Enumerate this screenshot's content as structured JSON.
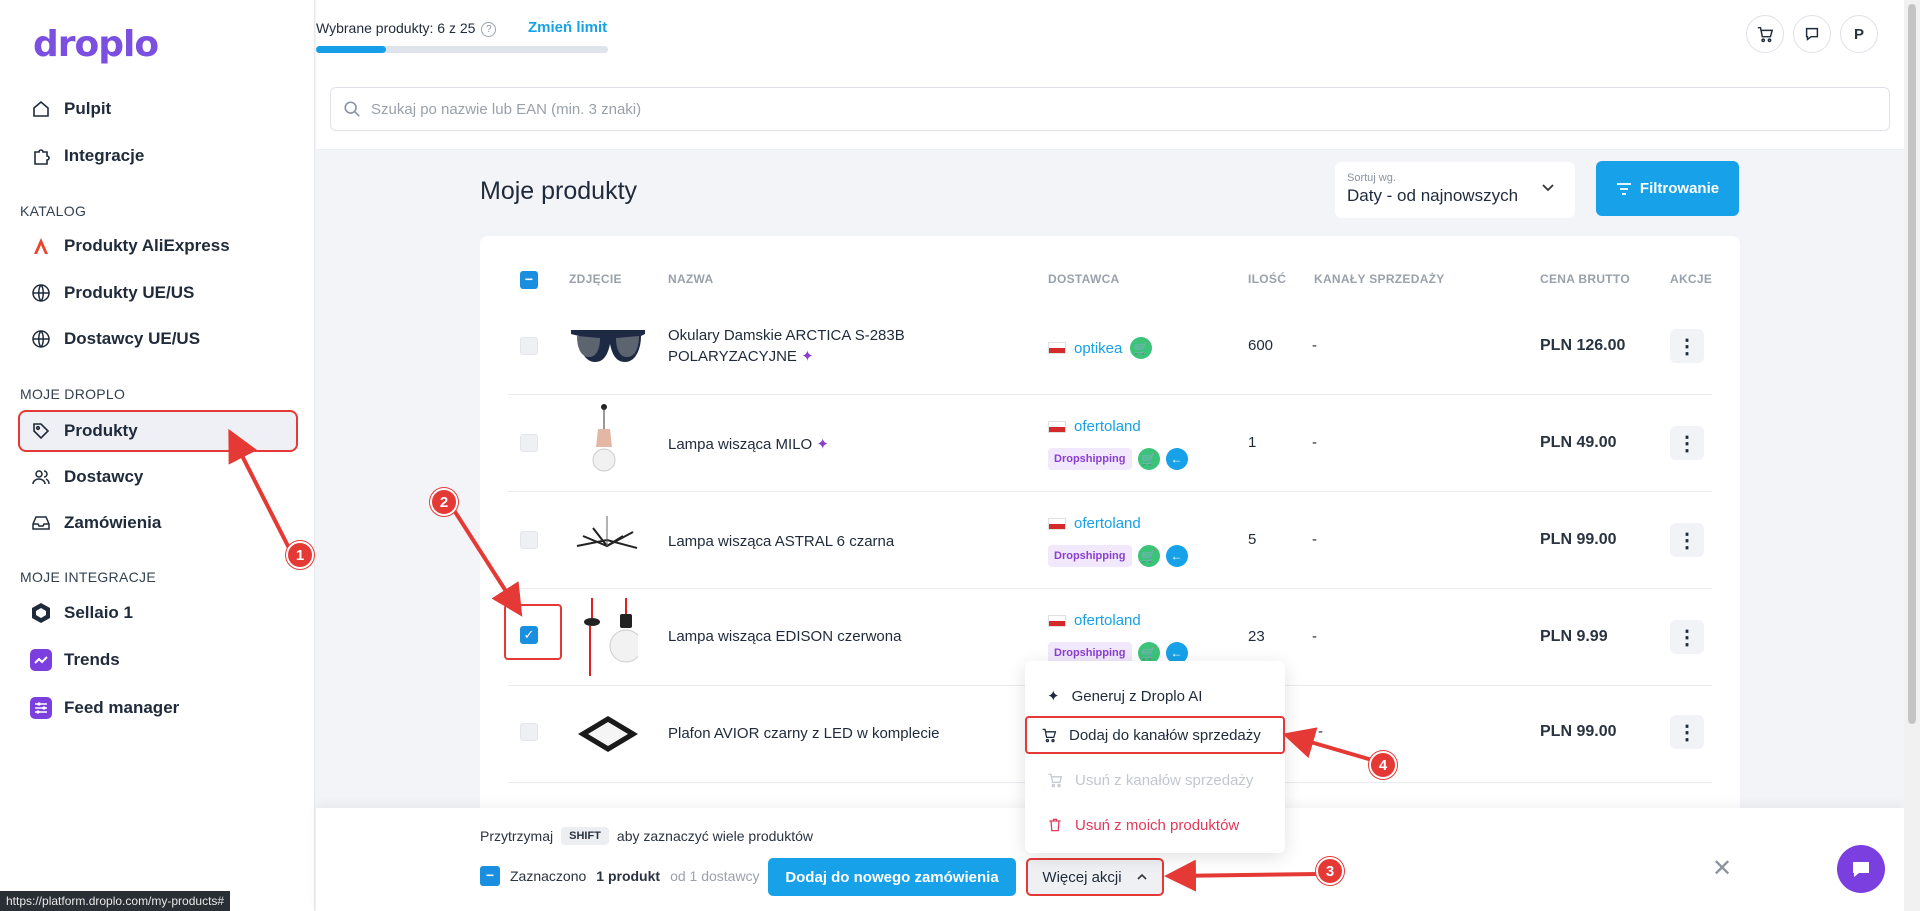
{
  "app": {
    "logo": "droplo"
  },
  "sidebar": {
    "top_items": [
      {
        "label": "Pulpit",
        "icon": "home-icon"
      },
      {
        "label": "Integracje",
        "icon": "puzzle-icon"
      }
    ],
    "sections": [
      {
        "title": "KATALOG",
        "items": [
          {
            "label": "Produkty AliExpress",
            "icon": "aliexpress-icon"
          },
          {
            "label": "Produkty UE/US",
            "icon": "globe-icon"
          },
          {
            "label": "Dostawcy UE/US",
            "icon": "globe-icon"
          }
        ]
      },
      {
        "title": "MOJE DROPLO",
        "items": [
          {
            "label": "Produkty",
            "icon": "tag-icon",
            "active": true
          },
          {
            "label": "Dostawcy",
            "icon": "users-icon"
          },
          {
            "label": "Zamówienia",
            "icon": "inbox-icon"
          }
        ]
      },
      {
        "title": "MOJE INTEGRACJE",
        "items": [
          {
            "label": "Sellaio 1",
            "icon": "sellaio-icon"
          },
          {
            "label": "Trends",
            "icon": "trends-icon"
          },
          {
            "label": "Feed manager",
            "icon": "feed-icon"
          }
        ]
      }
    ]
  },
  "topbar": {
    "selected_text": "Wybrane produkty: 6 z 25",
    "change_limit": "Zmień limit",
    "limit_progress": 0.24,
    "avatar_letter": "P"
  },
  "search": {
    "placeholder": "Szukaj po nazwie lub EAN (min. 3 znaki)"
  },
  "main": {
    "title": "Moje produkty",
    "sort_label": "Sortuj wg.",
    "sort_value": "Daty - od najnowszych",
    "filter_label": "Filtrowanie"
  },
  "table": {
    "headers": [
      "ZDJĘCIE",
      "NAZWA",
      "DOSTAWCA",
      "ILOŚĆ",
      "KANAŁY SPRZEDAŻY",
      "CENA BRUTTO",
      "AKCJE"
    ],
    "rows": [
      {
        "name": "Okulary Damskie ARCTICA S-283B POLARYZACYJNE",
        "supplier": "optikea",
        "badge": "",
        "qty": "600",
        "channels": "-",
        "price": "PLN 126.00",
        "checked": false
      },
      {
        "name": "Lampa wisząca MILO",
        "supplier": "ofertoland",
        "badge": "Dropshipping",
        "qty": "1",
        "channels": "-",
        "price": "PLN 49.00",
        "checked": false
      },
      {
        "name": "Lampa wisząca ASTRAL 6 czarna",
        "supplier": "ofertoland",
        "badge": "Dropshipping",
        "qty": "5",
        "channels": "-",
        "price": "PLN 99.00",
        "checked": false
      },
      {
        "name": "Lampa wisząca EDISON czerwona",
        "supplier": "ofertoland",
        "badge": "Dropshipping",
        "qty": "23",
        "channels": "-",
        "price": "PLN 9.99",
        "checked": true
      },
      {
        "name": "Plafon AVIOR czarny z LED w komplecie",
        "supplier": "",
        "badge": "",
        "qty": "",
        "channels": "-",
        "price": "PLN 99.00",
        "checked": false
      }
    ]
  },
  "dropdown": {
    "items": [
      {
        "label": "Generuj z Droplo AI",
        "icon": "sparkle-icon"
      },
      {
        "label": "Dodaj do kanałów sprzedaży",
        "icon": "cart-icon"
      },
      {
        "label": "Usuń z kanałów sprzedaży",
        "icon": "cart-remove-icon"
      },
      {
        "label": "Usuń z moich produktów",
        "icon": "trash-icon"
      }
    ]
  },
  "bottom": {
    "hint_before": "Przytrzymaj",
    "hint_key": "SHIFT",
    "hint_after": "aby zaznaczyć wiele produktów",
    "selected_prefix": "Zaznaczono",
    "selected_count": "1 produkt",
    "selected_suffix": "od 1 dostawcy",
    "add_order": "Dodaj do nowego zamówienia",
    "more_actions": "Więcej akcji"
  },
  "annotations": [
    "1",
    "2",
    "3",
    "4"
  ],
  "status_url": "https://platform.droplo.com/my-products#",
  "colors": {
    "accent": "#16a1e8",
    "brand": "#7b4fe0",
    "annotation": "#e53935"
  }
}
